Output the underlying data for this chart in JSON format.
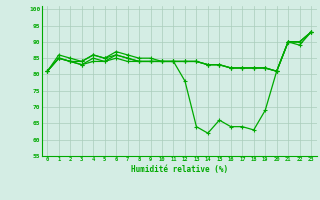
{
  "xlabel": "Humidité relative (%)",
  "xlim": [
    -0.5,
    23.5
  ],
  "ylim": [
    55,
    101
  ],
  "yticks": [
    55,
    60,
    65,
    70,
    75,
    80,
    85,
    90,
    95,
    100
  ],
  "xticks": [
    0,
    1,
    2,
    3,
    4,
    5,
    6,
    7,
    8,
    9,
    10,
    11,
    12,
    13,
    14,
    15,
    16,
    17,
    18,
    19,
    20,
    21,
    22,
    23
  ],
  "background_color": "#d4ede4",
  "grid_color": "#aaccbb",
  "line_color": "#00aa00",
  "series": [
    [
      81,
      85,
      84,
      84,
      86,
      85,
      87,
      86,
      85,
      85,
      84,
      84,
      84,
      84,
      83,
      83,
      82,
      82,
      82,
      82,
      81,
      90,
      90,
      93
    ],
    [
      81,
      85,
      84,
      83,
      85,
      84,
      86,
      85,
      84,
      84,
      84,
      84,
      78,
      64,
      62,
      66,
      64,
      64,
      63,
      69,
      81,
      90,
      89,
      93
    ],
    [
      81,
      86,
      85,
      84,
      86,
      85,
      86,
      85,
      84,
      84,
      84,
      84,
      84,
      84,
      83,
      83,
      82,
      82,
      82,
      82,
      81,
      90,
      90,
      93
    ],
    [
      81,
      85,
      84,
      83,
      84,
      84,
      85,
      84,
      84,
      84,
      84,
      84,
      84,
      84,
      83,
      83,
      82,
      82,
      82,
      82,
      81,
      90,
      90,
      93
    ]
  ]
}
